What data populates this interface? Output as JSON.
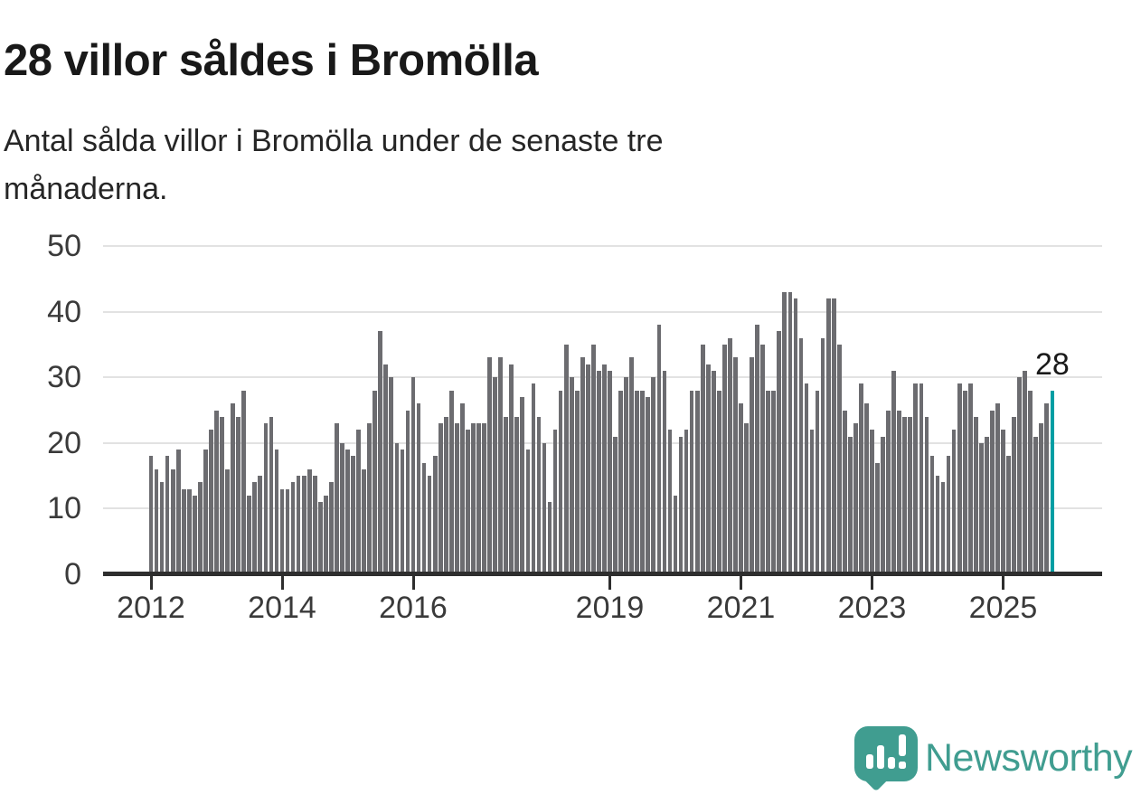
{
  "header": {
    "title": "28 villor såldes i Bromölla",
    "subtitle_lines": [
      "Antal sålda villor i Bromölla under de senaste tre",
      "månaderna."
    ]
  },
  "chart_data": {
    "type": "bar",
    "title": "28 villor såldes i Bromölla",
    "subtitle": "Antal sålda villor i Bromölla under de senaste tre månaderna.",
    "x_start": "2012-01",
    "x_frequency": "monthly",
    "values": [
      18,
      16,
      14,
      18,
      16,
      19,
      13,
      13,
      12,
      14,
      19,
      22,
      25,
      24,
      16,
      26,
      24,
      28,
      12,
      14,
      15,
      23,
      24,
      19,
      13,
      13,
      14,
      15,
      15,
      16,
      15,
      11,
      12,
      14,
      23,
      20,
      19,
      18,
      22,
      16,
      23,
      28,
      37,
      32,
      30,
      20,
      19,
      25,
      30,
      26,
      17,
      15,
      18,
      23,
      24,
      28,
      23,
      26,
      22,
      23,
      23,
      23,
      33,
      30,
      33,
      24,
      32,
      24,
      27,
      19,
      29,
      24,
      20,
      11,
      22,
      28,
      35,
      30,
      28,
      33,
      32,
      35,
      31,
      32,
      31,
      21,
      28,
      30,
      33,
      28,
      28,
      27,
      30,
      38,
      31,
      22,
      12,
      21,
      22,
      28,
      28,
      35,
      32,
      31,
      28,
      35,
      36,
      33,
      26,
      23,
      33,
      38,
      35,
      28,
      28,
      37,
      43,
      43,
      42,
      36,
      29,
      22,
      28,
      36,
      42,
      42,
      35,
      25,
      21,
      23,
      29,
      26,
      22,
      17,
      21,
      25,
      31,
      25,
      24,
      24,
      29,
      29,
      24,
      18,
      15,
      14,
      18,
      22,
      29,
      28,
      29,
      24,
      20,
      21,
      25,
      26,
      22,
      18,
      24,
      30,
      31,
      28,
      21,
      23,
      26,
      28
    ],
    "x_tick_years": [
      2012,
      2014,
      2016,
      2019,
      2021,
      2023,
      2025
    ],
    "y_ticks": [
      0,
      10,
      20,
      30,
      40,
      50
    ],
    "ylim": [
      0,
      50
    ],
    "grid": true,
    "legend": "none",
    "highlight_last_bar": true,
    "last_value_label": "28",
    "colors": {
      "bar": "#6c6c70",
      "highlight": "#009ea4",
      "gridline": "#e2e2e2",
      "axis": "#2e2e2e",
      "tick_label": "#3a3a3a"
    }
  },
  "branding": {
    "name": "Newsworthy",
    "color": "#409d90",
    "icon": "newsworthy-speech-bubble-chart-icon"
  }
}
